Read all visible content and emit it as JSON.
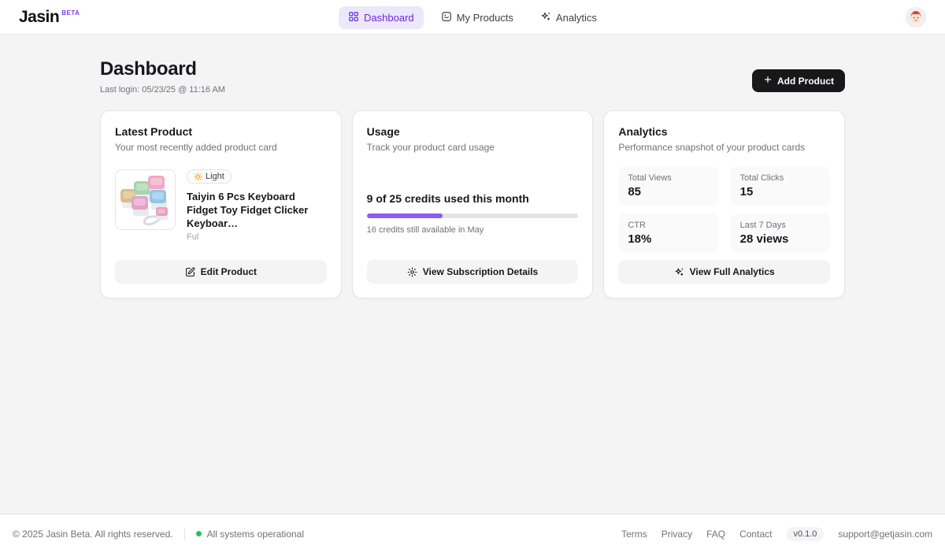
{
  "brand": {
    "name": "Jasin",
    "beta": "BETA"
  },
  "nav": {
    "items": [
      {
        "label": "Dashboard",
        "active": true
      },
      {
        "label": "My Products",
        "active": false
      },
      {
        "label": "Analytics",
        "active": false
      }
    ]
  },
  "page": {
    "title": "Dashboard",
    "last_login": "Last login: 05/23/25 @ 11:16 AM",
    "add_product_label": "Add Product"
  },
  "cards": {
    "latest_product": {
      "title": "Latest Product",
      "subtitle": "Your most recently added product card",
      "badge": "Light",
      "product_title": "Taiyin 6 Pcs Keyboard Fidget Toy Fidget Clicker Keyboar…",
      "product_snippet": "Ful",
      "button": "Edit Product"
    },
    "usage": {
      "title": "Usage",
      "subtitle": "Track your product card usage",
      "credits_line": "9 of 25 credits used this month",
      "credits_used": 9,
      "credits_total": 25,
      "progress_percent": 36,
      "remaining_line": "16 credits still available in May",
      "button": "View Subscription Details"
    },
    "analytics": {
      "title": "Analytics",
      "subtitle": "Performance snapshot of your product cards",
      "stats": [
        {
          "label": "Total Views",
          "value": "85"
        },
        {
          "label": "Total Clicks",
          "value": "15"
        },
        {
          "label": "CTR",
          "value": "18%"
        },
        {
          "label": "Last 7 Days",
          "value": "28 views"
        }
      ],
      "button": "View Full Analytics"
    }
  },
  "footer": {
    "copyright": "© 2025 Jasin Beta. All rights reserved.",
    "status": "All systems operational",
    "links": [
      "Terms",
      "Privacy",
      "FAQ",
      "Contact"
    ],
    "version": "v0.1.0",
    "support_email": "support@getjasin.com"
  },
  "colors": {
    "accent_purple": "#6d28d9",
    "progress_purple": "#8b5cf6",
    "status_green": "#22c55e",
    "button_dark": "#18181b"
  }
}
